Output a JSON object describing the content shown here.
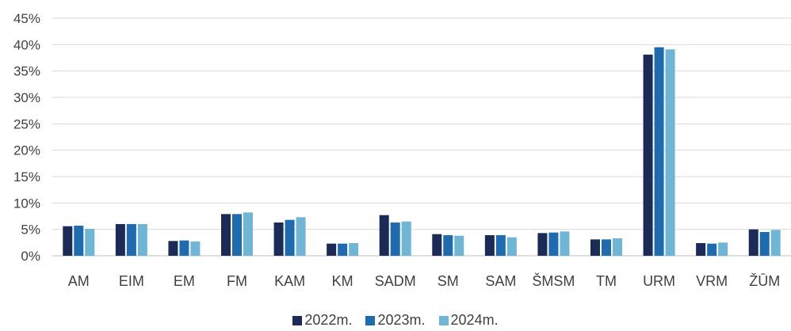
{
  "chart_data": {
    "type": "bar",
    "categories": [
      "AM",
      "EIM",
      "EM",
      "FM",
      "KAM",
      "KM",
      "SADM",
      "SM",
      "SAM",
      "ŠMSM",
      "TM",
      "URM",
      "VRM",
      "ŽŪM"
    ],
    "series": [
      {
        "name": "2022m.",
        "color": "#1b2a57",
        "values": [
          5.6,
          6.0,
          2.8,
          7.9,
          6.3,
          2.3,
          7.7,
          4.1,
          3.9,
          4.3,
          3.1,
          38.1,
          2.4,
          5.0
        ]
      },
      {
        "name": "2023m.",
        "color": "#1f6bb0",
        "values": [
          5.7,
          6.0,
          2.9,
          7.9,
          6.8,
          2.3,
          6.3,
          3.9,
          3.9,
          4.4,
          3.1,
          39.5,
          2.3,
          4.5
        ]
      },
      {
        "name": "2024m.",
        "color": "#6fb6d6",
        "values": [
          5.1,
          6.0,
          2.7,
          8.2,
          7.3,
          2.4,
          6.5,
          3.8,
          3.5,
          4.6,
          3.3,
          39.1,
          2.5,
          4.9
        ]
      }
    ],
    "ylim": [
      0,
      45
    ],
    "yticks": [
      "0%",
      "5%",
      "10%",
      "15%",
      "20%",
      "25%",
      "30%",
      "35%",
      "40%",
      "45%"
    ],
    "grid": true,
    "legend_position": "bottom"
  }
}
